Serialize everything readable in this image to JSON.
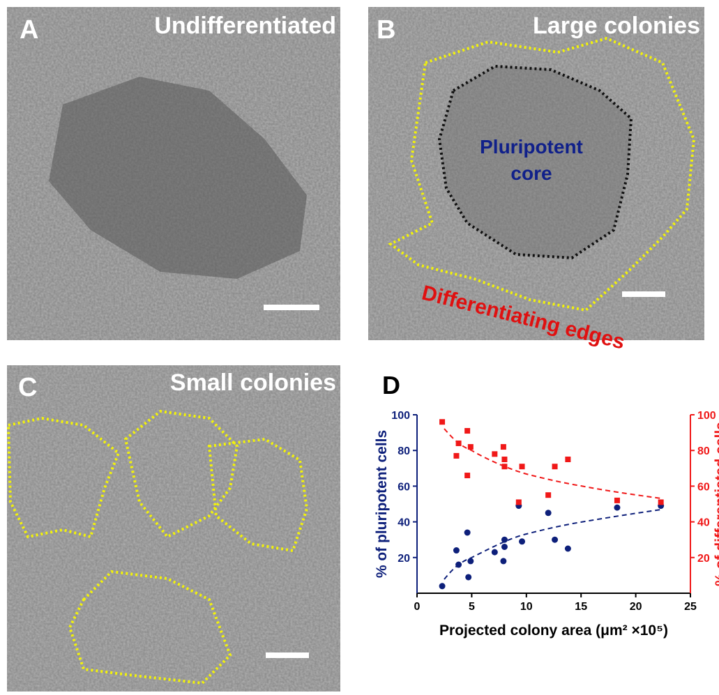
{
  "panels": [
    {
      "label": "A",
      "title": "Undifferentiated"
    },
    {
      "label": "B",
      "title": "Large colonies",
      "annotations": [
        "Pluripotent",
        "core",
        "Differentiating edges"
      ]
    },
    {
      "label": "C",
      "title": "Small colonies"
    }
  ],
  "chart_data": {
    "type": "scatter",
    "label": "D",
    "xlabel": "Projected colony area (μm² ×10⁵)",
    "ylabel": "% of pluripotent cells",
    "y2label": "% of differentiated cells",
    "xlim": [
      0,
      25
    ],
    "xticks": [
      0,
      5,
      10,
      15,
      20,
      25
    ],
    "ylim": [
      0,
      100
    ],
    "yticks": [
      20,
      40,
      60,
      80,
      100
    ],
    "y2lim": [
      0,
      100
    ],
    "y2ticks": [
      20,
      40,
      60,
      80,
      100
    ],
    "series": [
      {
        "color": "#0d1f7a",
        "x": [
          2.3,
          3.6,
          3.8,
          4.6,
          4.7,
          4.9,
          7.1,
          7.9,
          8.0,
          8.0,
          9.3,
          9.6,
          12.0,
          12.6,
          13.8,
          18.3,
          22.3
        ],
        "values": [
          4,
          24,
          16,
          34,
          9,
          18,
          23,
          18,
          26,
          30,
          49,
          29,
          45,
          30,
          25,
          48,
          49
        ]
      },
      {
        "color": "#f01818",
        "axis": "y2",
        "x": [
          2.3,
          3.6,
          3.8,
          4.6,
          4.6,
          4.9,
          7.1,
          7.9,
          8.0,
          8.0,
          9.3,
          9.6,
          12.0,
          12.6,
          13.8,
          18.3,
          22.3
        ],
        "values": [
          96,
          77,
          84,
          91,
          66,
          82,
          78,
          82,
          71,
          75,
          51,
          71,
          55,
          71,
          75,
          52,
          51
        ]
      }
    ]
  }
}
